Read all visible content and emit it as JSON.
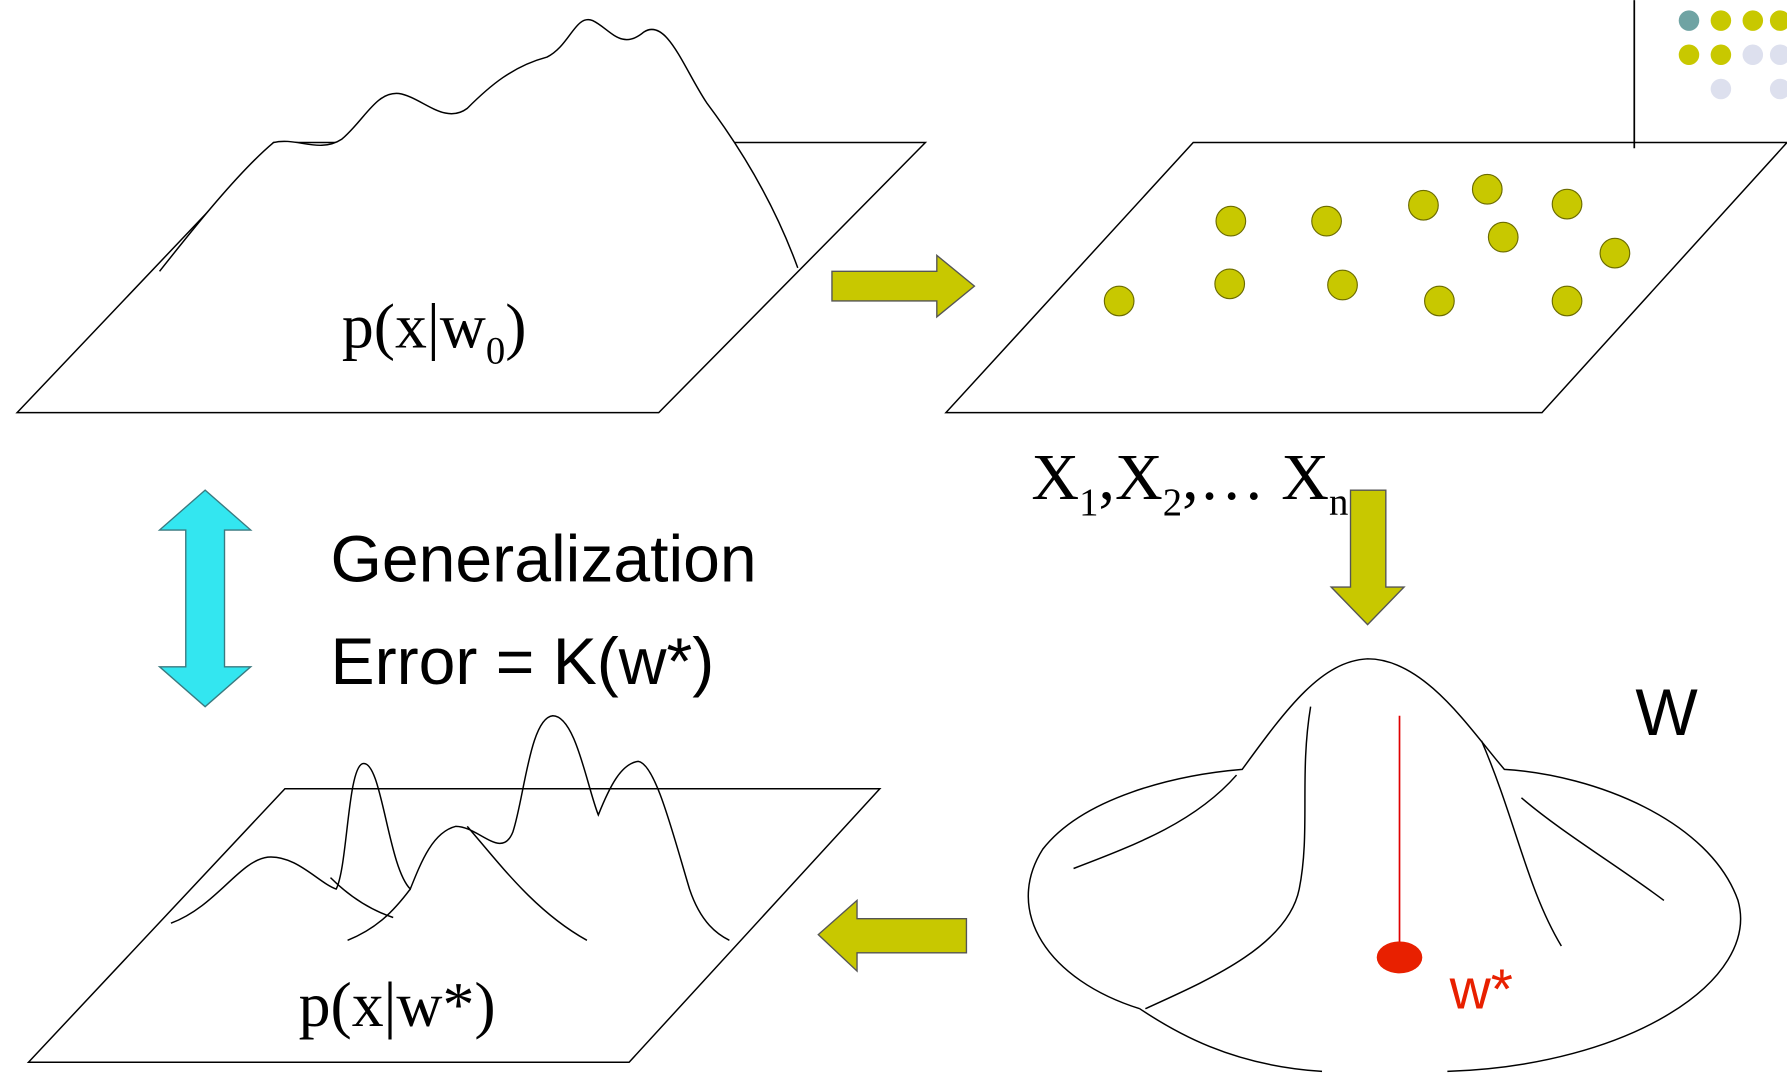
{
  "true_distribution": {
    "label": "p(x|w",
    "subscript": "0",
    "close": ")"
  },
  "samples": {
    "parts": [
      "X",
      "1",
      ",X",
      "2",
      ",… X",
      "n"
    ]
  },
  "generalization": {
    "line1": "Generalization",
    "line2": "Error = K(w*)"
  },
  "parameter_space": {
    "label": "W",
    "estimate": "w*"
  },
  "estimated_distribution": {
    "label": "p(x|w*)"
  }
}
